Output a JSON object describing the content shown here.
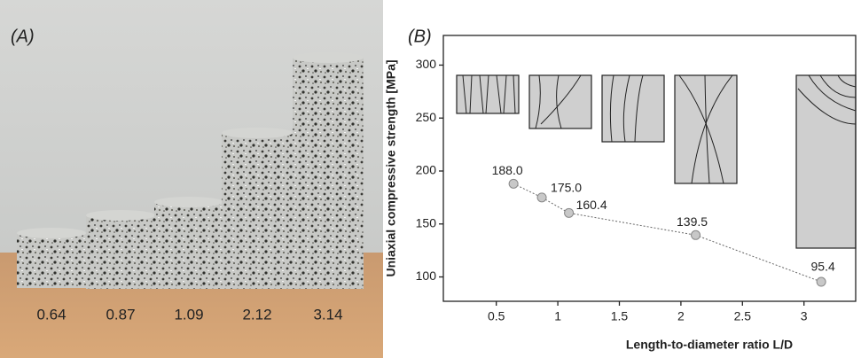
{
  "photo": {
    "panel_label": "(A)",
    "specimen_labels": [
      "0.64",
      "0.87",
      "1.09",
      "2.12",
      "3.14"
    ]
  },
  "chart_data": {
    "type": "line",
    "panel_label": "(B)",
    "x_label": "Length-to-diameter ratio L/D",
    "y_label": "Uniaxial compressive strength [MPa]",
    "x": [
      0.64,
      0.87,
      1.09,
      2.12,
      3.14
    ],
    "values": [
      188.0,
      175.0,
      160.4,
      139.5,
      95.4
    ],
    "value_labels": [
      "188.0",
      "175.0",
      "160.4",
      "139.5",
      "95.4"
    ],
    "color": "#c8c8c8",
    "xlim": [
      0.07,
      3.42
    ],
    "xticks": [
      0.5,
      1.0,
      1.5,
      2.0,
      2.5,
      3.0
    ],
    "ylim": [
      77,
      328
    ],
    "yticks": [
      100,
      150,
      200,
      250,
      300
    ],
    "grid": false
  }
}
